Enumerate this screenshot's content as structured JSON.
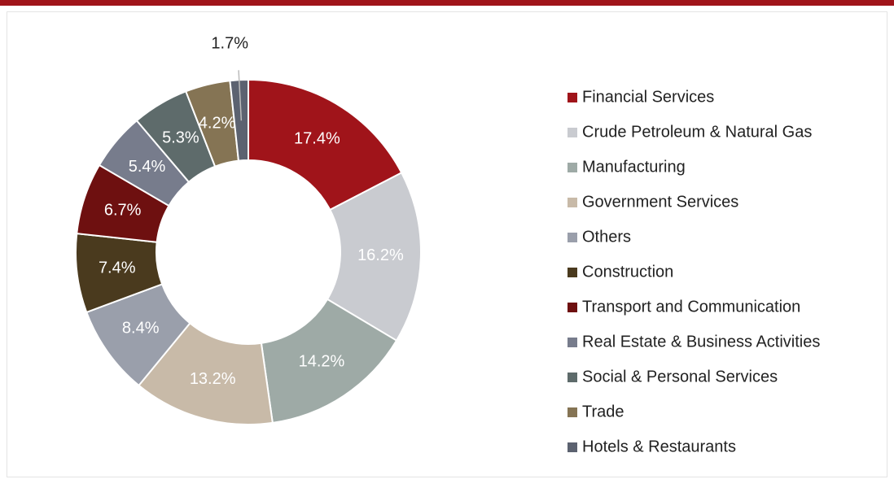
{
  "chart_data": {
    "type": "donut",
    "categories": [
      "Financial Services",
      "Crude Petroleum & Natural Gas",
      "Manufacturing",
      "Government Services",
      "Others",
      "Construction",
      "Transport and Communication",
      "Real Estate & Business Activities",
      "Social & Personal Services",
      "Trade",
      "Hotels & Restaurants"
    ],
    "values": [
      17.4,
      16.2,
      14.2,
      13.2,
      8.4,
      7.4,
      6.7,
      5.4,
      5.3,
      4.2,
      1.7
    ],
    "value_labels": [
      "17.4%",
      "16.2%",
      "14.2%",
      "13.2%",
      "8.4%",
      "7.4%",
      "6.7%",
      "5.4%",
      "5.3%",
      "4.2%",
      "1.7%"
    ],
    "colors": [
      "#a0141a",
      "#c9cbd0",
      "#9eaaa6",
      "#c8baa8",
      "#9a9fab",
      "#4a3a1e",
      "#6e1010",
      "#777c8c",
      "#5e6b6b",
      "#857454",
      "#5c6270"
    ],
    "legend": "right"
  }
}
